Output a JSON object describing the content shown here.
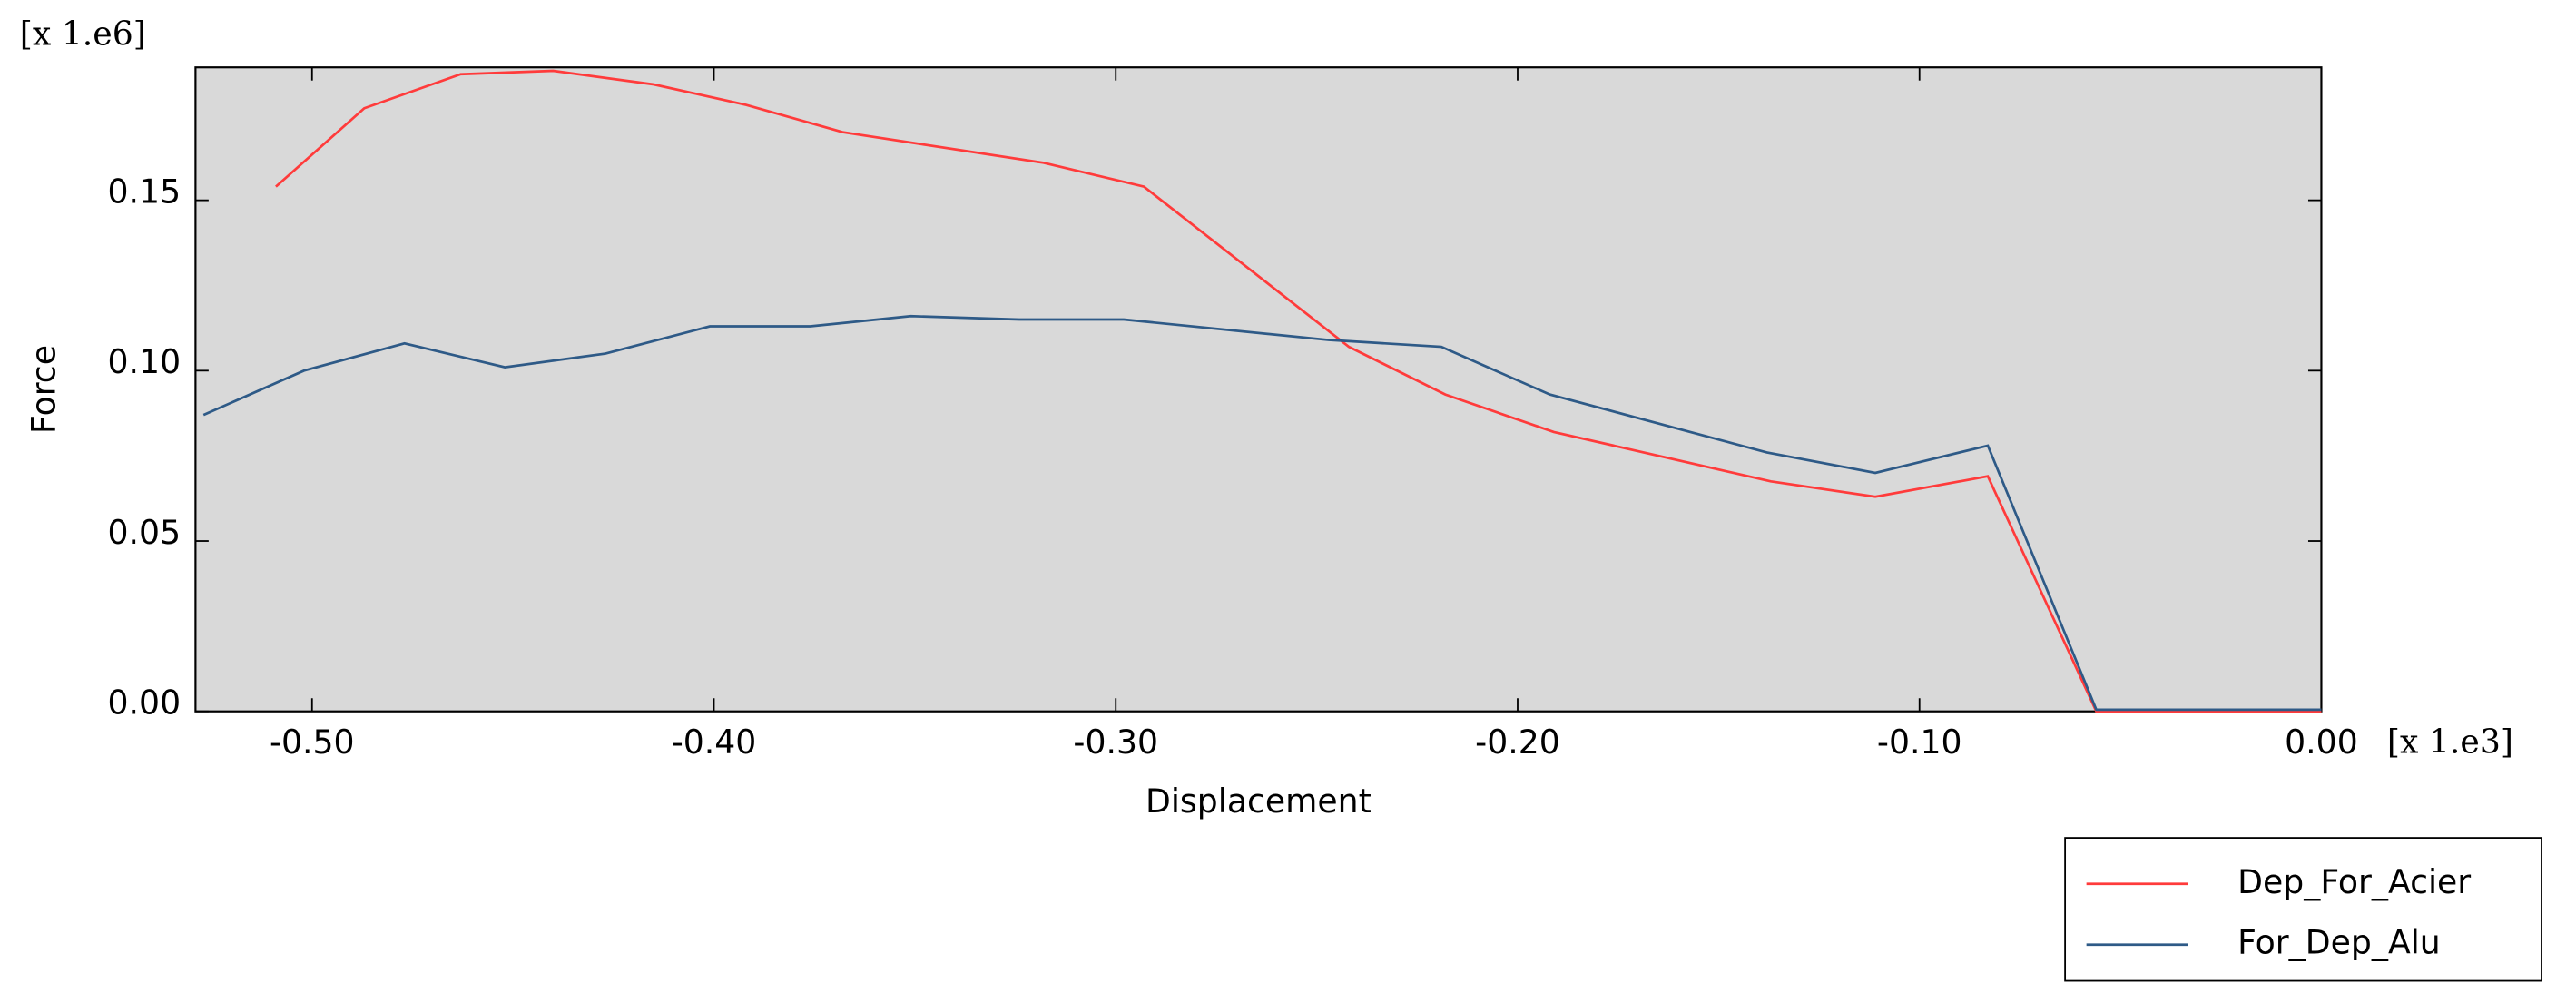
{
  "chart_data": {
    "type": "line",
    "y_multiplier": "[x 1.e6]",
    "x_multiplier": "[x 1.e3]",
    "x_label": "Displacement",
    "y_label": "Force",
    "xlim": [
      -0.529,
      0
    ],
    "ylim": [
      0,
      0.189
    ],
    "xticks": [
      {
        "value": -0.5,
        "label": "-0.50"
      },
      {
        "value": -0.4,
        "label": "-0.40"
      },
      {
        "value": -0.3,
        "label": "-0.30"
      },
      {
        "value": -0.2,
        "label": "-0.20"
      },
      {
        "value": -0.1,
        "label": "-0.10"
      },
      {
        "value": 0,
        "label": "0.00"
      }
    ],
    "yticks": [
      {
        "value": 0,
        "label": "0.00"
      },
      {
        "value": 0.05,
        "label": "0.05"
      },
      {
        "value": 0.1,
        "label": "0.10"
      },
      {
        "value": 0.15,
        "label": "0.15"
      }
    ],
    "series": [
      {
        "name": "Dep_For_Acier",
        "color": "#ff3b3b",
        "x": [
          -0.509,
          -0.487,
          -0.463,
          -0.44,
          -0.415,
          -0.392,
          -0.368,
          -0.318,
          -0.293,
          -0.242,
          -0.218,
          -0.191,
          -0.137,
          -0.111,
          -0.083,
          -0.056,
          0
        ],
        "values": [
          0.154,
          0.177,
          0.187,
          0.188,
          0.184,
          0.178,
          0.17,
          0.161,
          0.154,
          0.107,
          0.093,
          0.082,
          0.0675,
          0.063,
          0.069,
          0,
          0
        ]
      },
      {
        "name": "For_Dep_Alu",
        "color": "#2e5a87",
        "x": [
          -0.527,
          -0.502,
          -0.477,
          -0.452,
          -0.427,
          -0.401,
          -0.376,
          -0.351,
          -0.324,
          -0.298,
          -0.247,
          -0.219,
          -0.192,
          -0.138,
          -0.111,
          -0.083,
          -0.056,
          0
        ],
        "values": [
          0.087,
          0.1,
          0.108,
          0.101,
          0.105,
          0.113,
          0.113,
          0.116,
          0.115,
          0.115,
          0.109,
          0.107,
          0.093,
          0.076,
          0.07,
          0.078,
          0.0005,
          0.0005
        ]
      }
    ]
  }
}
